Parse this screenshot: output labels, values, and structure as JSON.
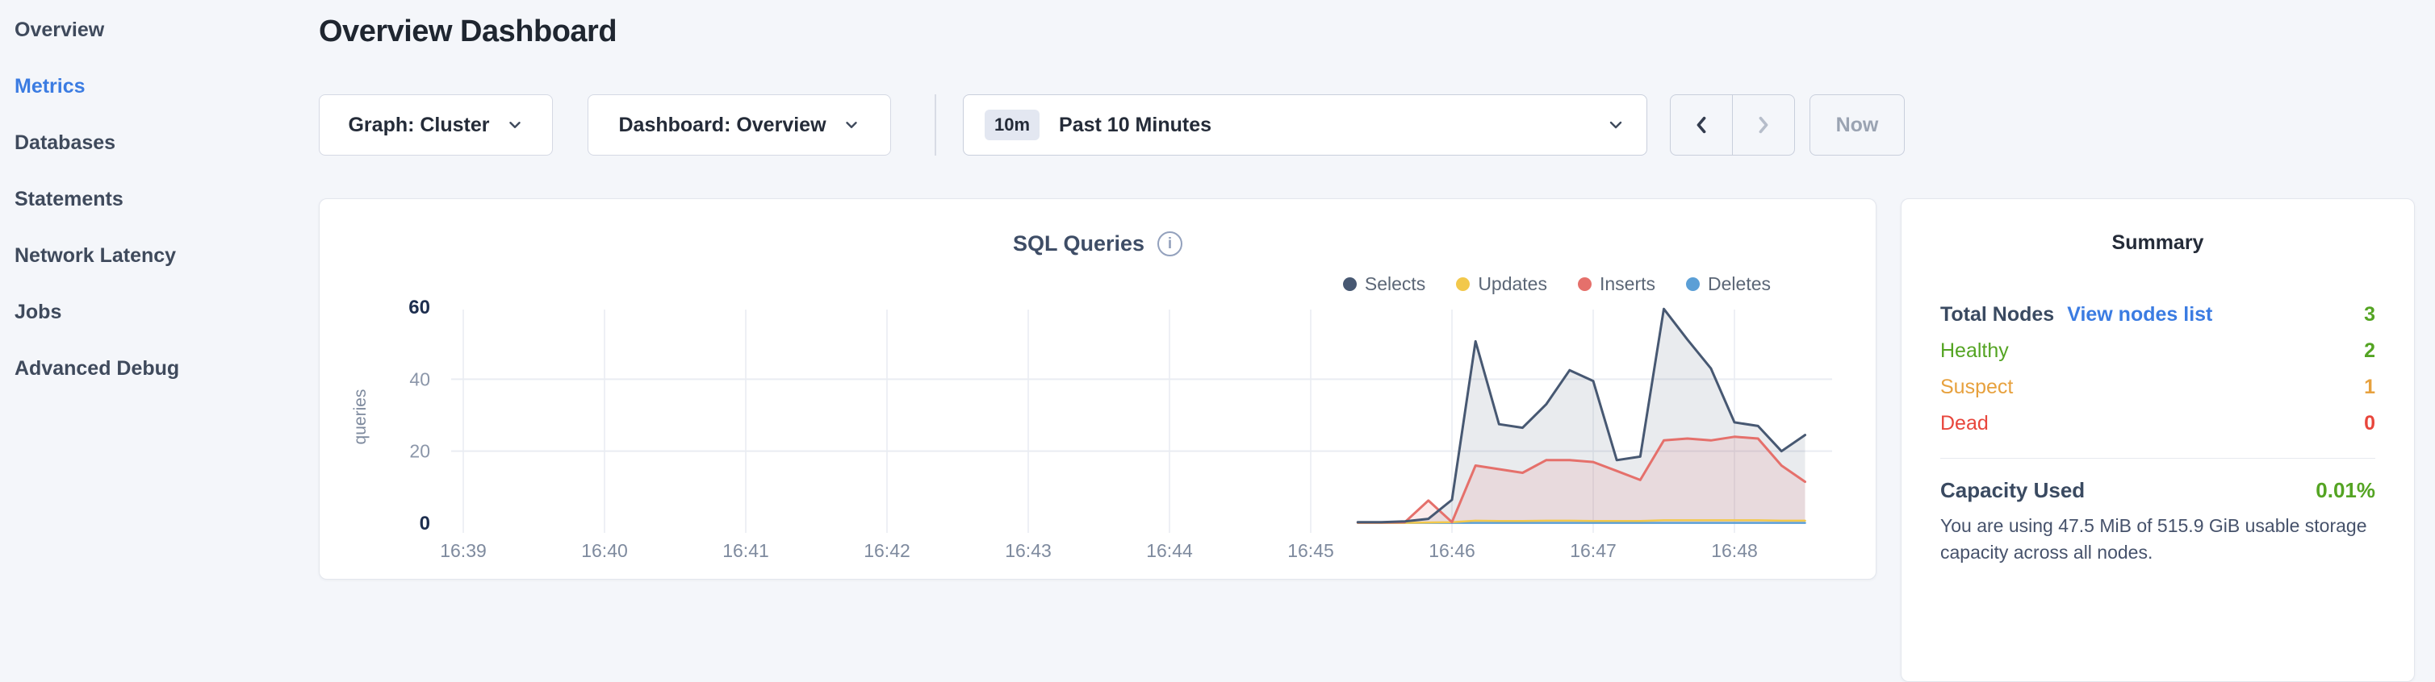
{
  "theme": {
    "accent_blue": "#3b7ce2",
    "healthy_green": "#54a423",
    "suspect_orange": "#e7a13e",
    "dead_red": "#e8463c"
  },
  "sidebar": {
    "items": [
      {
        "label": "Overview",
        "active": false
      },
      {
        "label": "Metrics",
        "active": true
      },
      {
        "label": "Databases",
        "active": false
      },
      {
        "label": "Statements",
        "active": false
      },
      {
        "label": "Network Latency",
        "active": false
      },
      {
        "label": "Jobs",
        "active": false
      },
      {
        "label": "Advanced Debug",
        "active": false
      }
    ]
  },
  "header": {
    "title": "Overview Dashboard"
  },
  "controls": {
    "graph_selector": {
      "label": "Graph: Cluster"
    },
    "dashboard_selector": {
      "label": "Dashboard: Overview"
    },
    "time_selector": {
      "badge": "10m",
      "label": "Past 10 Minutes"
    },
    "now_button": {
      "label": "Now"
    }
  },
  "chart": {
    "title": "SQL Queries",
    "legend": [
      {
        "label": "Selects",
        "color": "#475872"
      },
      {
        "label": "Updates",
        "color": "#f2c84b"
      },
      {
        "label": "Inserts",
        "color": "#e5706b"
      },
      {
        "label": "Deletes",
        "color": "#5b9fd6"
      }
    ],
    "chart_data": {
      "type": "area",
      "title": "SQL Queries",
      "ylabel": "queries",
      "ylim": [
        0,
        60
      ],
      "y_ticks": [
        0,
        20,
        40,
        60
      ],
      "x_ticks": [
        "16:39",
        "16:40",
        "16:41",
        "16:42",
        "16:43",
        "16:44",
        "16:45",
        "16:46",
        "16:47",
        "16:48"
      ],
      "x_start": "16:39:00",
      "series_start": "16:45:20",
      "interval_seconds": 10,
      "grid": true,
      "legend_position": "top-right",
      "series": [
        {
          "name": "Selects",
          "color": "#475872",
          "fill": "rgba(71,88,114,0.12)",
          "values": [
            0.3,
            0.3,
            0.5,
            1.2,
            6.5,
            50.5,
            27.5,
            26.5,
            33,
            42.5,
            39.5,
            17.5,
            18.5,
            59.5,
            51,
            43,
            28,
            27,
            20,
            24.5
          ]
        },
        {
          "name": "Updates",
          "color": "#f2c84b",
          "fill": "none",
          "values": [
            0.1,
            0.1,
            0.1,
            0.2,
            0.3,
            0.7,
            0.6,
            0.6,
            0.7,
            0.7,
            0.6,
            0.6,
            0.6,
            0.8,
            0.8,
            0.8,
            0.8,
            0.8,
            0.7,
            0.7
          ]
        },
        {
          "name": "Inserts",
          "color": "#e5706b",
          "fill": "rgba(229,112,107,0.13)",
          "values": [
            0.2,
            0.2,
            0.3,
            6.3,
            0.3,
            16,
            15,
            14,
            17.5,
            17.5,
            17,
            14.5,
            12,
            23,
            23.5,
            23,
            24,
            23.5,
            16,
            11.5
          ]
        },
        {
          "name": "Deletes",
          "color": "#5b9fd6",
          "fill": "none",
          "values": [
            0.1,
            0.1,
            0.1,
            0.1,
            0.1,
            0.1,
            0.1,
            0.1,
            0.1,
            0.1,
            0.1,
            0.1,
            0.1,
            0.1,
            0.1,
            0.1,
            0.1,
            0.1,
            0.1,
            0.1
          ]
        }
      ]
    }
  },
  "summary": {
    "title": "Summary",
    "rows": [
      {
        "label": "Total Nodes",
        "link": "View nodes list",
        "value": "3",
        "bold": true,
        "label_color": "#3a4a61",
        "value_color": "#54a423"
      },
      {
        "label": "Healthy",
        "value": "2",
        "bold": false,
        "label_color": "#54a423",
        "value_color": "#54a423"
      },
      {
        "label": "Suspect",
        "value": "1",
        "bold": false,
        "label_color": "#e7a13e",
        "value_color": "#e7a13e"
      },
      {
        "label": "Dead",
        "value": "0",
        "bold": false,
        "label_color": "#e8463c",
        "value_color": "#e8463c"
      }
    ],
    "capacity": {
      "label": "Capacity Used",
      "value": "0.01%",
      "value_color": "#54a423",
      "description": "You are using 47.5 MiB of 515.9 GiB usable storage capacity across all nodes."
    }
  }
}
